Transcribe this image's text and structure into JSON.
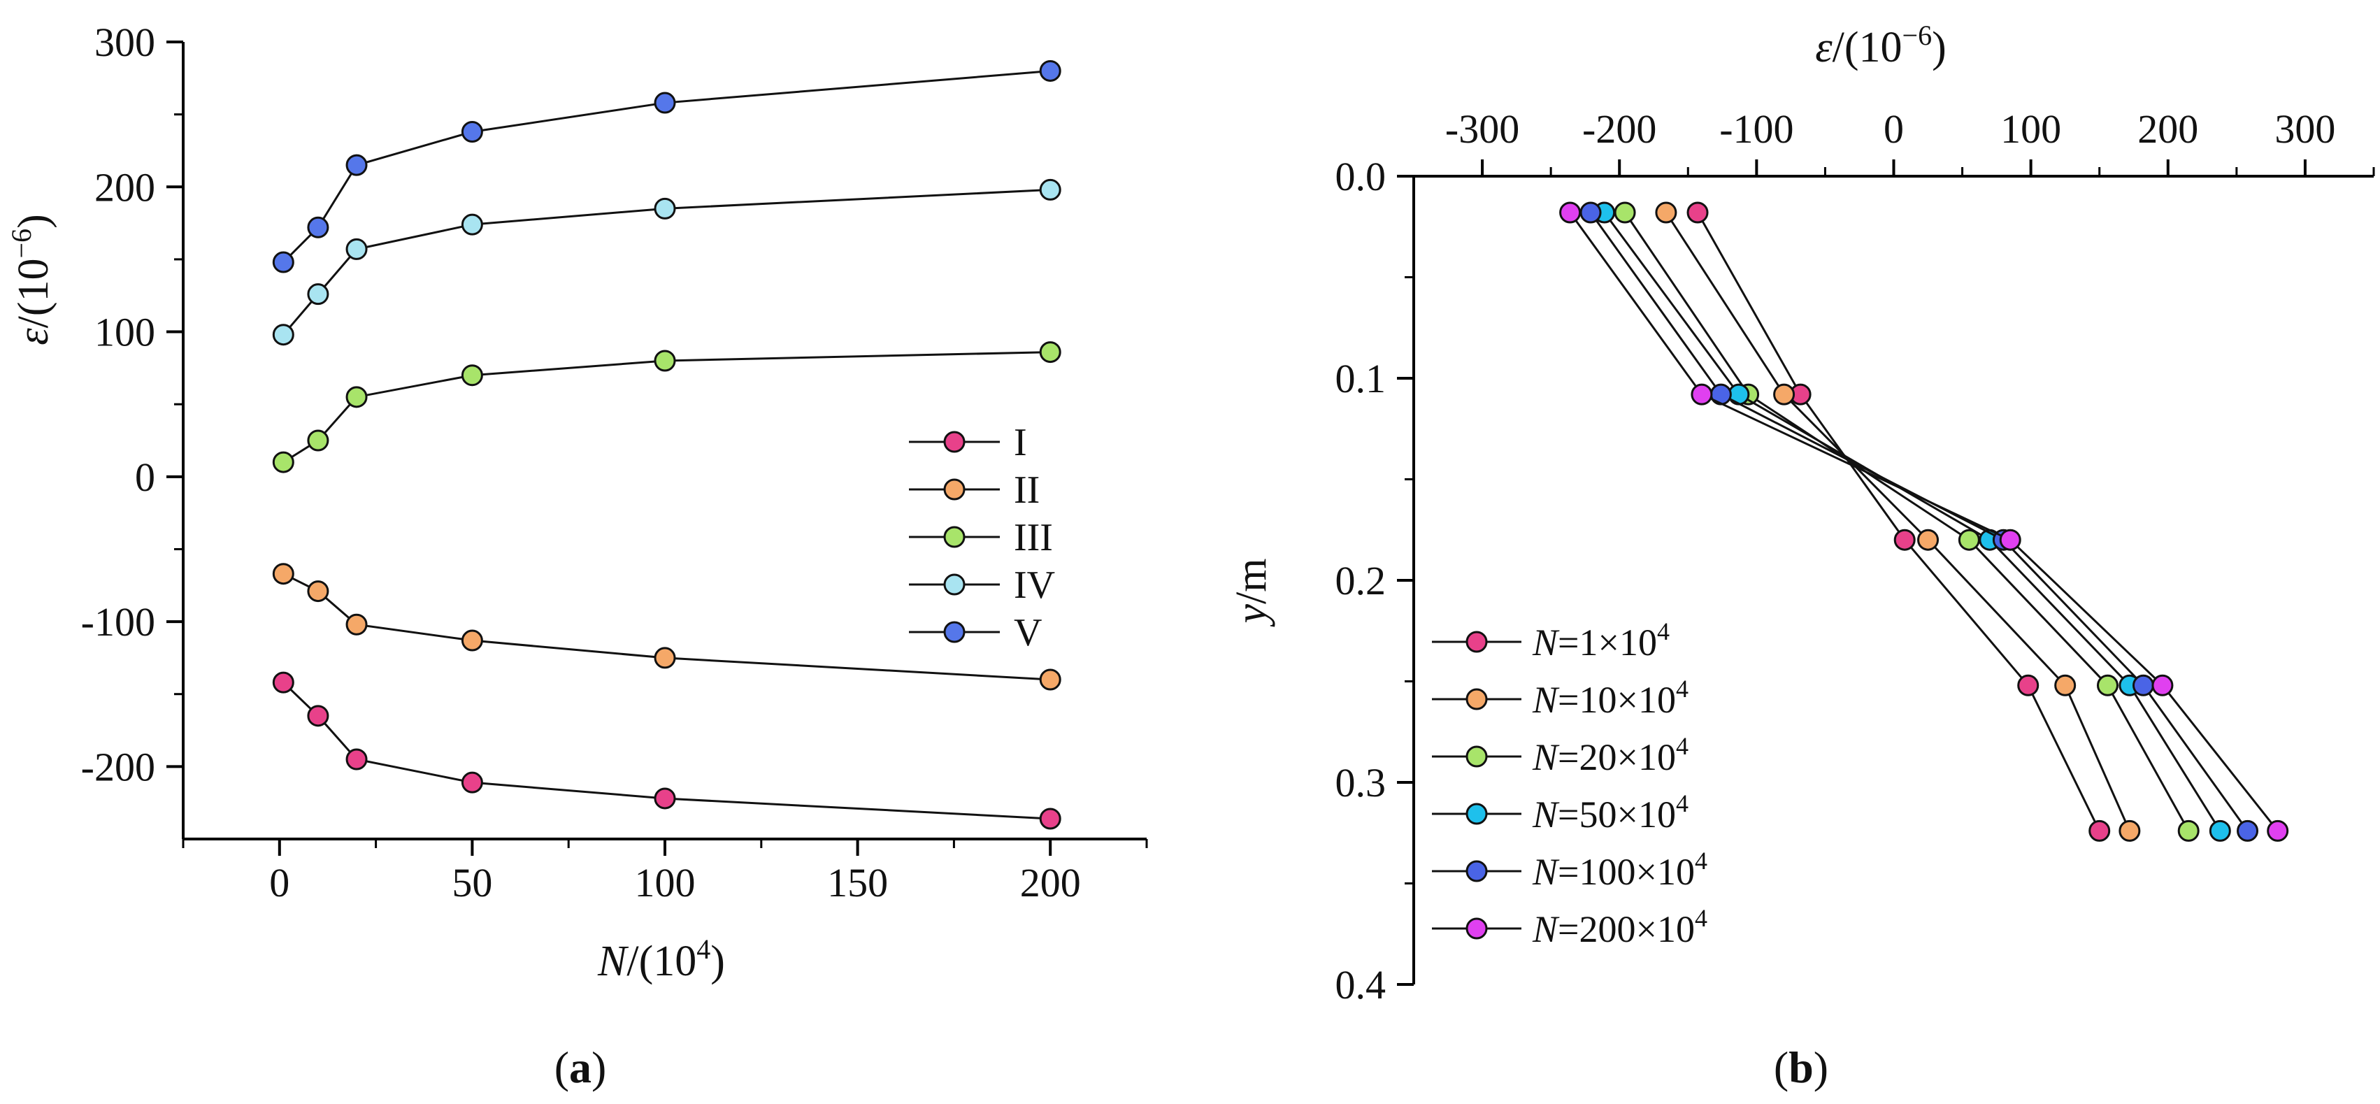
{
  "chart_data": [
    {
      "type": "line",
      "panel_label": "a",
      "title": "",
      "xlabel_var": "N",
      "xlabel_unit": "/(10",
      "xlabel_exp": "4",
      "xlabel_close": ")",
      "ylabel_var": "ε",
      "ylabel_unit": "/(10",
      "ylabel_exp": "−6",
      "ylabel_close": ")",
      "xlim": [
        -25,
        225
      ],
      "ylim": [
        -250,
        300
      ],
      "xticks": [
        0,
        50,
        100,
        150,
        200
      ],
      "yticks": [
        -200,
        -100,
        0,
        100,
        200,
        300
      ],
      "grid": false,
      "legend_position": "center-right",
      "x": [
        1,
        10,
        20,
        50,
        100,
        200
      ],
      "series": [
        {
          "name": "I",
          "color": "#e8418a",
          "values": [
            -142,
            -165,
            -195,
            -211,
            -222,
            -236
          ]
        },
        {
          "name": "II",
          "color": "#f5a868",
          "values": [
            -67,
            -79,
            -102,
            -113,
            -125,
            -140
          ]
        },
        {
          "name": "III",
          "color": "#a8e46a",
          "values": [
            10,
            25,
            55,
            70,
            80,
            86
          ]
        },
        {
          "name": "IV",
          "color": "#a9e4f1",
          "values": [
            98,
            126,
            157,
            174,
            185,
            198
          ]
        },
        {
          "name": "V",
          "color": "#5577ea",
          "values": [
            148,
            172,
            215,
            238,
            258,
            280
          ]
        }
      ]
    },
    {
      "type": "line",
      "panel_label": "b",
      "title": "",
      "xlabel_var": "ε",
      "xlabel_unit": "/(10",
      "xlabel_exp": "−6",
      "xlabel_close": ")",
      "ylabel_var": "y",
      "ylabel_unit": "/m",
      "xlim": [
        -350,
        350
      ],
      "ylim": [
        0.0,
        0.4
      ],
      "y_inverted": true,
      "x_axis_position": "top",
      "xticks": [
        -300,
        -200,
        -100,
        0,
        100,
        200,
        300
      ],
      "yticks": [
        0.0,
        0.1,
        0.2,
        0.3,
        0.4
      ],
      "ytick_labels": [
        "0.0",
        "0.1",
        "0.2",
        "0.3",
        "0.4"
      ],
      "grid": false,
      "legend_position": "bottom-left",
      "y": [
        0.018,
        0.108,
        0.18,
        0.252,
        0.324
      ],
      "series": [
        {
          "name": "N=1×10^4",
          "legend_var": "N",
          "legend_rest": "=1×10",
          "legend_exp": "4",
          "color": "#e8418a",
          "values": [
            -143,
            -68,
            8,
            98,
            150
          ]
        },
        {
          "name": "N=10×10^4",
          "legend_var": "N",
          "legend_rest": "=10×10",
          "legend_exp": "4",
          "color": "#f5a868",
          "values": [
            -166,
            -80,
            25,
            125,
            172
          ]
        },
        {
          "name": "N=20×10^4",
          "legend_var": "N",
          "legend_rest": "=20×10",
          "legend_exp": "4",
          "color": "#a8e46a",
          "values": [
            -196,
            -106,
            55,
            156,
            215
          ]
        },
        {
          "name": "N=50×10^4",
          "legend_var": "N",
          "legend_rest": "=50×10",
          "legend_exp": "4",
          "color": "#1ec0ec",
          "values": [
            -211,
            -113,
            70,
            172,
            238
          ]
        },
        {
          "name": "N=100×10^4",
          "legend_var": "N",
          "legend_rest": "=100×10",
          "legend_exp": "4",
          "color": "#4a64e6",
          "values": [
            -221,
            -126,
            80,
            182,
            258
          ]
        },
        {
          "name": "N=200×10^4",
          "legend_var": "N",
          "legend_rest": "=200×10",
          "legend_exp": "4",
          "color": "#e040f0",
          "values": [
            -236,
            -140,
            85,
            196,
            280
          ]
        }
      ]
    }
  ]
}
